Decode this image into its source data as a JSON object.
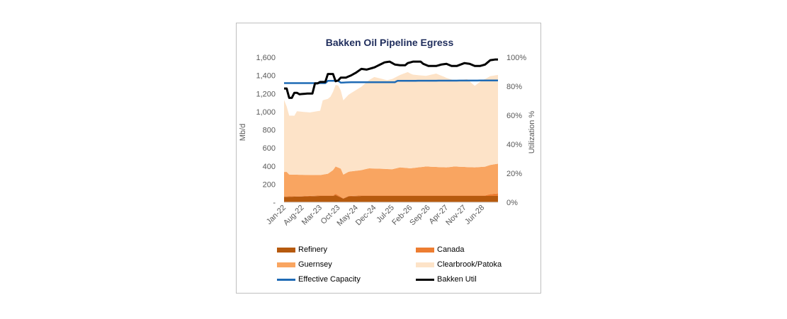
{
  "chart_data": {
    "type": "area",
    "title": "Bakken Oil Pipeline Egress",
    "ylabel": "Mb/d",
    "y2label": "Utilization %",
    "ylim": [
      0,
      1600
    ],
    "y2lim": [
      0,
      1.0
    ],
    "y_ticks": [
      "-",
      "200",
      "400",
      "600",
      "800",
      "1,000",
      "1,200",
      "1,400",
      "1,600"
    ],
    "y2_ticks": [
      "0%",
      "20%",
      "40%",
      "60%",
      "80%",
      "100%"
    ],
    "x_tick_labels": [
      "Jan-22",
      "Aug-22",
      "Mar-23",
      "Oct-23",
      "May-24",
      "Dec-24",
      "Jul-25",
      "Feb-26",
      "Sep-26",
      "Apr-27",
      "Nov-27",
      "Jun-28"
    ],
    "x_tick_step": 7,
    "n_points": 84,
    "stacked_series": [
      {
        "name": "Refinery",
        "color": "#b65a0e",
        "knots": [
          [
            0,
            60
          ],
          [
            8,
            65
          ],
          [
            14,
            70
          ],
          [
            19,
            70
          ],
          [
            20,
            80
          ],
          [
            23,
            40
          ],
          [
            25,
            65
          ],
          [
            30,
            70
          ],
          [
            84,
            70
          ]
        ]
      },
      {
        "name": "Canada",
        "color": "#ed7d31",
        "knots": [
          [
            0,
            5
          ],
          [
            19,
            5
          ],
          [
            20,
            15
          ],
          [
            23,
            5
          ],
          [
            78,
            5
          ],
          [
            80,
            20
          ],
          [
            84,
            30
          ]
        ]
      },
      {
        "name": "Guernsey",
        "color": "#f9a561",
        "knots": [
          [
            0,
            270
          ],
          [
            1,
            270
          ],
          [
            2,
            240
          ],
          [
            14,
            225
          ],
          [
            17,
            240
          ],
          [
            20,
            300
          ],
          [
            22,
            310
          ],
          [
            23,
            260
          ],
          [
            26,
            270
          ],
          [
            30,
            280
          ],
          [
            33,
            300
          ],
          [
            42,
            290
          ],
          [
            45,
            310
          ],
          [
            49,
            300
          ],
          [
            55,
            320
          ],
          [
            63,
            310
          ],
          [
            66,
            320
          ],
          [
            74,
            310
          ],
          [
            79,
            320
          ],
          [
            84,
            330
          ]
        ]
      },
      {
        "name": "Clearbrook/Patoka",
        "color": "#fde3c8",
        "knots": [
          [
            0,
            795
          ],
          [
            2,
            650
          ],
          [
            4,
            650
          ],
          [
            5,
            700
          ],
          [
            10,
            690
          ],
          [
            14,
            710
          ],
          [
            15,
            820
          ],
          [
            18,
            830
          ],
          [
            20,
            900
          ],
          [
            21,
            905
          ],
          [
            23,
            820
          ],
          [
            25,
            850
          ],
          [
            30,
            920
          ],
          [
            35,
            1010
          ],
          [
            40,
            980
          ],
          [
            45,
            1020
          ],
          [
            48,
            1060
          ],
          [
            50,
            1030
          ],
          [
            55,
            1000
          ],
          [
            59,
            1030
          ],
          [
            62,
            1000
          ],
          [
            66,
            950
          ],
          [
            69,
            960
          ],
          [
            71,
            970
          ],
          [
            74,
            900
          ],
          [
            77,
            960
          ],
          [
            80,
            980
          ],
          [
            84,
            980
          ]
        ]
      }
    ],
    "line_series": [
      {
        "name": "Effective Capacity",
        "axis": "left",
        "color": "#1f6bb5",
        "knots": [
          [
            0,
            1315
          ],
          [
            16,
            1315
          ],
          [
            17,
            1340
          ],
          [
            21,
            1340
          ],
          [
            22,
            1320
          ],
          [
            26,
            1325
          ],
          [
            43,
            1325
          ],
          [
            44,
            1340
          ],
          [
            84,
            1345
          ]
        ]
      },
      {
        "name": "Bakken Util",
        "axis": "right",
        "color": "#000000",
        "knots": [
          [
            0,
            0.785
          ],
          [
            1,
            0.785
          ],
          [
            2,
            0.72
          ],
          [
            3,
            0.72
          ],
          [
            4,
            0.755
          ],
          [
            5,
            0.755
          ],
          [
            6,
            0.745
          ],
          [
            9,
            0.75
          ],
          [
            11,
            0.75
          ],
          [
            12,
            0.82
          ],
          [
            13,
            0.82
          ],
          [
            14,
            0.83
          ],
          [
            16,
            0.83
          ],
          [
            17,
            0.885
          ],
          [
            19,
            0.885
          ],
          [
            20,
            0.835
          ],
          [
            21,
            0.84
          ],
          [
            22,
            0.86
          ],
          [
            24,
            0.86
          ],
          [
            26,
            0.875
          ],
          [
            28,
            0.895
          ],
          [
            30,
            0.92
          ],
          [
            32,
            0.915
          ],
          [
            35,
            0.93
          ],
          [
            39,
            0.965
          ],
          [
            41,
            0.97
          ],
          [
            43,
            0.95
          ],
          [
            45,
            0.945
          ],
          [
            47,
            0.945
          ],
          [
            48,
            0.96
          ],
          [
            50,
            0.97
          ],
          [
            53,
            0.97
          ],
          [
            54,
            0.955
          ],
          [
            56,
            0.94
          ],
          [
            59,
            0.94
          ],
          [
            61,
            0.95
          ],
          [
            63,
            0.955
          ],
          [
            65,
            0.94
          ],
          [
            67,
            0.94
          ],
          [
            70,
            0.96
          ],
          [
            72,
            0.955
          ],
          [
            74,
            0.94
          ],
          [
            76,
            0.94
          ],
          [
            78,
            0.95
          ],
          [
            80,
            0.98
          ],
          [
            82,
            0.985
          ],
          [
            84,
            0.985
          ]
        ]
      }
    ],
    "legend": [
      {
        "label": "Refinery",
        "kind": "area",
        "color": "#b65a0e"
      },
      {
        "label": "Canada",
        "kind": "area",
        "color": "#ed7d31"
      },
      {
        "label": "Guernsey",
        "kind": "area",
        "color": "#f9a561"
      },
      {
        "label": "Clearbrook/Patoka",
        "kind": "area",
        "color": "#fde3c8"
      },
      {
        "label": "Effective Capacity",
        "kind": "line",
        "color": "#1f6bb5"
      },
      {
        "label": "Bakken Util",
        "kind": "line",
        "color": "#000000"
      }
    ],
    "legend_position": "bottom",
    "grid": false
  }
}
